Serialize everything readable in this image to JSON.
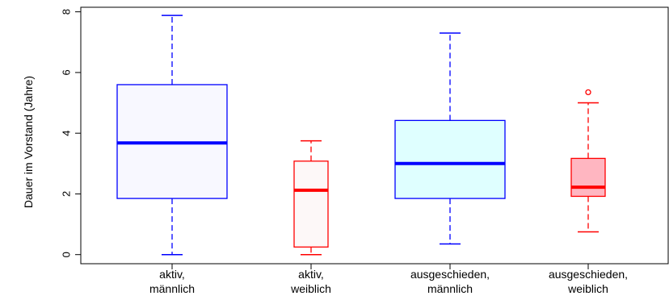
{
  "chart_data": {
    "type": "boxplot",
    "ylabel": "Dauer im Vorstand (Jahre)",
    "xlabel": "",
    "title": "",
    "ylim": [
      -0.3,
      8.15
    ],
    "yticks": [
      0,
      2,
      4,
      6,
      8
    ],
    "grid": false,
    "categories": [
      [
        "aktiv,",
        "männlich"
      ],
      [
        "aktiv,",
        "weiblich"
      ],
      [
        "ausgeschieden,",
        "männlich"
      ],
      [
        "ausgeschieden,",
        "weiblich"
      ]
    ],
    "boxes": [
      {
        "whisker_low": 0.0,
        "q1": 1.85,
        "median": 3.68,
        "q3": 5.6,
        "whisker_high": 7.88,
        "outliers": [],
        "color": "#0000ff",
        "fill": "#f8f8ff",
        "box_width": "wide"
      },
      {
        "whisker_low": 0.0,
        "q1": 0.25,
        "median": 2.12,
        "q3": 3.08,
        "whisker_high": 3.75,
        "outliers": [],
        "color": "#ff0000",
        "fill": "#fdf8f8",
        "box_width": "narrow"
      },
      {
        "whisker_low": 0.35,
        "q1": 1.85,
        "median": 3.0,
        "q3": 4.42,
        "whisker_high": 7.3,
        "outliers": [],
        "color": "#0000ff",
        "fill": "#dfffff",
        "box_width": "wide"
      },
      {
        "whisker_low": 0.75,
        "q1": 1.92,
        "median": 2.22,
        "q3": 3.17,
        "whisker_high": 5.0,
        "outliers": [
          5.35
        ],
        "color": "#ff0000",
        "fill": "#ffb6c1",
        "box_width": "narrow"
      }
    ]
  }
}
